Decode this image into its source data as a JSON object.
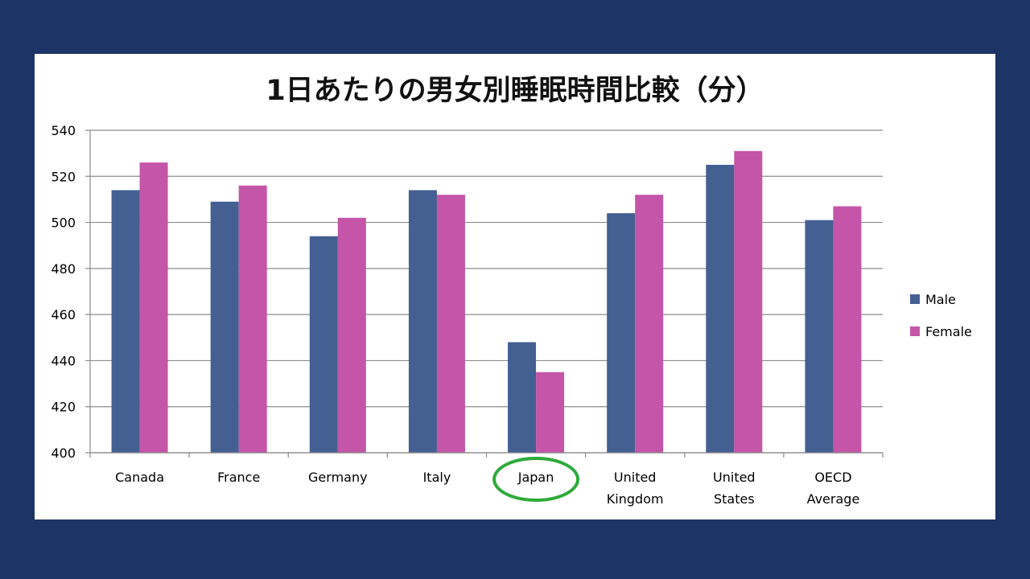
{
  "chart_data": {
    "type": "bar",
    "title": "1日あたりの男女別睡眠時間比較（分）",
    "categories": [
      [
        "Canada"
      ],
      [
        "France"
      ],
      [
        "Germany"
      ],
      [
        "Italy"
      ],
      [
        "Japan"
      ],
      [
        "United",
        "Kingdom"
      ],
      [
        "United",
        "States"
      ],
      [
        "OECD",
        "Average"
      ]
    ],
    "series": [
      {
        "name": "Male",
        "color": "#445f92",
        "values": [
          514,
          509,
          494,
          514,
          448,
          504,
          525,
          501
        ]
      },
      {
        "name": "Female",
        "color": "#c455a8",
        "values": [
          526,
          516,
          502,
          512,
          435,
          512,
          531,
          507
        ]
      }
    ],
    "ylim": [
      400,
      540
    ],
    "yticks": [
      400,
      420,
      440,
      460,
      480,
      500,
      520,
      540
    ],
    "grid": true,
    "legend": "right",
    "xlabel": "",
    "ylabel": "",
    "highlight": {
      "category": "Japan",
      "shape": "ellipse",
      "color": "#2eaa3a"
    }
  }
}
